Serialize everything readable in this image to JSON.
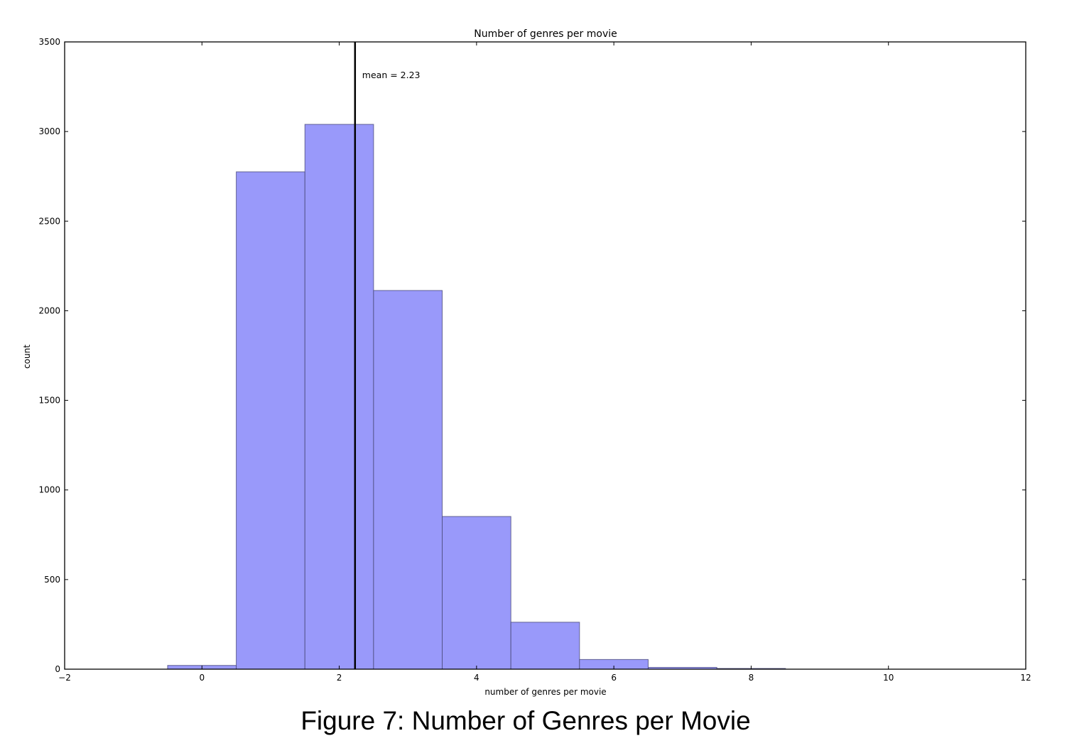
{
  "figure": {
    "caption": "Figure 7: Number of Genres per Movie"
  },
  "chart_data": {
    "type": "bar",
    "subtype": "histogram",
    "title": "Number of genres per movie",
    "xlabel": "number of genres per movie",
    "ylabel": "count",
    "xlim": [
      -2,
      12
    ],
    "ylim": [
      0,
      3500
    ],
    "x_ticks": [
      -2,
      0,
      2,
      4,
      6,
      8,
      10,
      12
    ],
    "x_tick_labels": [
      "−2",
      "0",
      "2",
      "4",
      "6",
      "8",
      "10",
      "12"
    ],
    "y_ticks": [
      0,
      500,
      1000,
      1500,
      2000,
      2500,
      3000,
      3500
    ],
    "y_tick_labels": [
      "0",
      "500",
      "1000",
      "1500",
      "2000",
      "2500",
      "3000",
      "3500"
    ],
    "grid": false,
    "legend": null,
    "bin_width": 1,
    "categories": [
      "0",
      "1",
      "2",
      "3",
      "4",
      "5",
      "6",
      "7",
      "8"
    ],
    "bin_edges": [
      -0.5,
      0.5,
      1.5,
      2.5,
      3.5,
      4.5,
      5.5,
      6.5,
      7.5,
      8.5
    ],
    "values": [
      21,
      2775,
      3040,
      2113,
      852,
      262,
      54,
      10,
      4
    ],
    "bar_color": "#9999fa",
    "bar_edge_color": "#4a4a7a",
    "annotations": [
      {
        "type": "vline",
        "x": 2.23,
        "color": "#000000",
        "label": "mean = 2.23"
      }
    ]
  }
}
